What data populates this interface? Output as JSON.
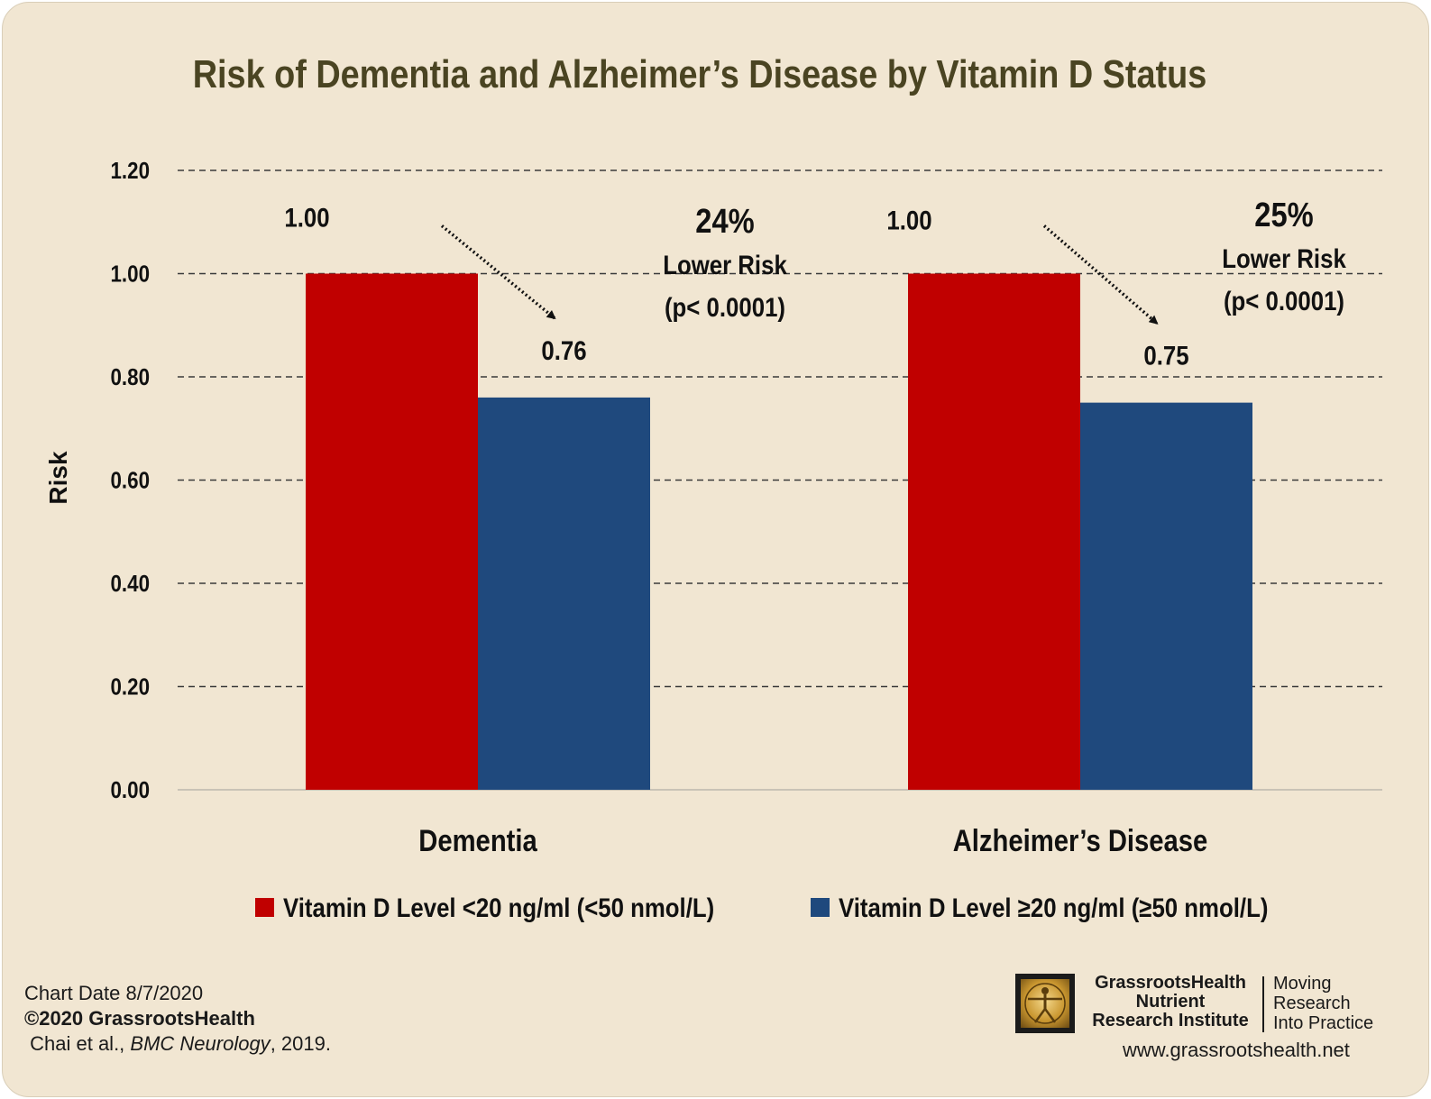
{
  "chart_data": {
    "type": "bar",
    "title": "Risk of Dementia and Alzheimer’s Disease by Vitamin D Status",
    "ylabel": "Risk",
    "ylim": [
      0,
      1.2
    ],
    "yticks": [
      "0.00",
      "0.20",
      "0.40",
      "0.60",
      "0.80",
      "1.00",
      "1.20"
    ],
    "grid": "dashed-horizontal",
    "legend_position": "bottom",
    "categories": [
      "Dementia",
      "Alzheimer’s Disease"
    ],
    "series": [
      {
        "name": "Vitamin D Level <20 ng/ml (<50 nmol/L)",
        "values": [
          1.0,
          1.0
        ],
        "labels": [
          "1.00",
          "1.00"
        ],
        "color": "#c00000"
      },
      {
        "name": "Vitamin D Level ≥20 ng/ml (≥50 nmol/L)",
        "values": [
          0.76,
          0.75
        ],
        "labels": [
          "0.76",
          "0.75"
        ],
        "color": "#1f497d"
      }
    ],
    "annotations": [
      {
        "percent": "24%",
        "text": "Lower Risk",
        "pvalue": "(p< 0.0001)"
      },
      {
        "percent": "25%",
        "text": "Lower Risk",
        "pvalue": "(p< 0.0001)"
      }
    ]
  },
  "footer": {
    "chart_date": "Chart Date 8/7/2020",
    "copyright": "©2020 GrassrootsHealth",
    "citation_authors": "Chai et al., ",
    "citation_journal": "BMC Neurology",
    "citation_year": ", 2019."
  },
  "logo": {
    "org_line1": "GrassrootsHealth",
    "org_line2": "Nutrient",
    "org_line3": "Research Institute",
    "tagline1": "Moving",
    "tagline2": "Research",
    "tagline3": "Into Practice"
  },
  "website": "www.grassrootshealth.net"
}
